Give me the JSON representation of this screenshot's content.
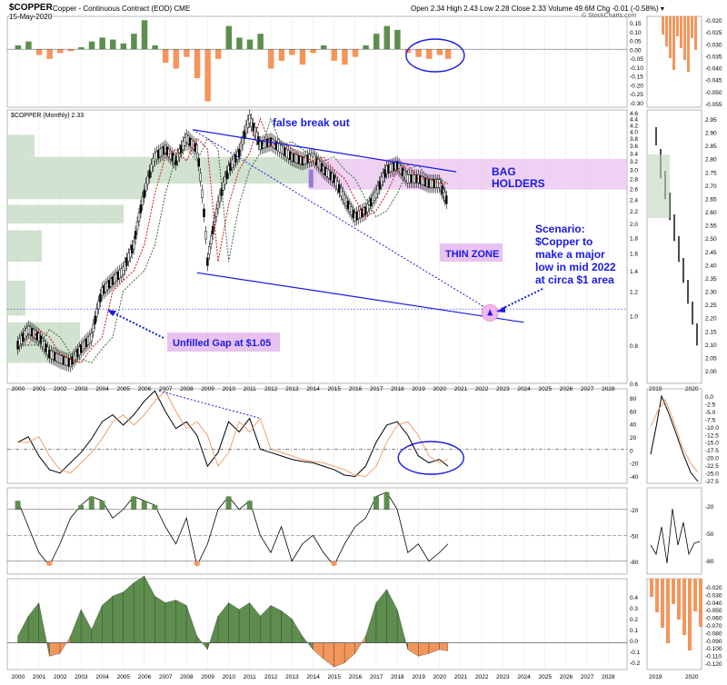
{
  "header": {
    "symbol": "$COPPER",
    "description": "Copper - Continuous Contract (EOD) CME",
    "date": "15-May-2020",
    "quote": "Open 2.34  High 2.43  Low 2.28  Close 2.33  Volume 49.6M  Chg -0.01 (-0.58%) ▾",
    "credit": "© StockCharts.com"
  },
  "colors": {
    "green": "#5e8e4e",
    "orange": "#f4965b",
    "blue": "#1a1ae6",
    "pink": "#e9c3ef",
    "vbp": "#bfd6bc",
    "ma_red": "#d01010",
    "ma_green": "#3a6a3a"
  },
  "chart_data": [
    {
      "type": "bar",
      "panel": "histogram-top",
      "x": [
        2000,
        2000.5,
        2001,
        2001.5,
        2002,
        2002.5,
        2003,
        2003.5,
        2004,
        2004.5,
        2005,
        2005.5,
        2006,
        2006.5,
        2007,
        2007.5,
        2008,
        2008.5,
        2009,
        2009.5,
        2010,
        2010.5,
        2011,
        2011.5,
        2012,
        2012.5,
        2013,
        2013.5,
        2014,
        2014.5,
        2015,
        2015.5,
        2016,
        2016.5,
        2017,
        2017.5,
        2018,
        2018.5,
        2019,
        2019.5,
        2020,
        2020.4
      ],
      "values": [
        0.02,
        0.04,
        -0.03,
        -0.05,
        -0.02,
        -0.01,
        0.01,
        0.04,
        0.06,
        0.05,
        0.03,
        0.08,
        0.15,
        0.02,
        -0.07,
        -0.1,
        -0.04,
        -0.15,
        -0.27,
        -0.05,
        0.12,
        0.06,
        0.05,
        0.08,
        -0.1,
        -0.06,
        -0.03,
        -0.08,
        -0.02,
        0.02,
        -0.06,
        -0.08,
        -0.04,
        0.02,
        0.08,
        0.12,
        0.1,
        -0.02,
        -0.04,
        -0.05,
        -0.03,
        -0.05
      ],
      "ylim": [
        -0.3,
        0.17
      ]
    },
    {
      "type": "line",
      "panel": "price",
      "title": "$COPPER (Monthly) 2.33",
      "log_scale": true,
      "x": [
        2000,
        2000.5,
        2001,
        2001.5,
        2002,
        2002.5,
        2003,
        2003.5,
        2004,
        2004.5,
        2005,
        2005.5,
        2006,
        2006.5,
        2007,
        2007.5,
        2008,
        2008.5,
        2009,
        2009.5,
        2010,
        2010.5,
        2011,
        2011.5,
        2012,
        2012.5,
        2013,
        2013.5,
        2014,
        2014.5,
        2015,
        2015.5,
        2016,
        2016.5,
        2017,
        2017.5,
        2018,
        2018.5,
        2019,
        2019.5,
        2020,
        2020.4
      ],
      "series": [
        {
          "values": [
            0.8,
            0.9,
            0.85,
            0.75,
            0.72,
            0.7,
            0.78,
            0.85,
            1.2,
            1.3,
            1.4,
            1.7,
            2.5,
            3.3,
            3.5,
            3.2,
            3.8,
            3.5,
            1.5,
            2.3,
            3.0,
            3.4,
            4.4,
            3.6,
            3.7,
            3.5,
            3.3,
            3.2,
            3.3,
            3.0,
            2.8,
            2.4,
            2.1,
            2.2,
            2.5,
            3.0,
            3.1,
            2.8,
            2.8,
            2.7,
            2.7,
            2.33
          ]
        }
      ],
      "ylim": [
        0.6,
        4.7
      ],
      "x_ticks": [
        "2000",
        "2001",
        "2002",
        "2003",
        "2004",
        "2005",
        "2006",
        "2007",
        "2008",
        "2009",
        "2010",
        "2011",
        "2012",
        "2013",
        "2014",
        "2015",
        "2016",
        "2017",
        "2018",
        "2019",
        "2020",
        "2021",
        "2022",
        "2023",
        "2024",
        "2025",
        "2026",
        "2027",
        "2028"
      ],
      "y_ticks": [
        0.6,
        0.8,
        1.0,
        1.2,
        1.4,
        1.6,
        1.8,
        2.0,
        2.2,
        2.4,
        2.6,
        2.8,
        3.0,
        3.2,
        3.4,
        3.6,
        3.8,
        4.0,
        4.2,
        4.4,
        4.6
      ]
    },
    {
      "type": "line",
      "panel": "momentum",
      "x": [
        2000,
        2000.5,
        2001,
        2001.5,
        2002,
        2002.5,
        2003,
        2003.5,
        2004,
        2004.5,
        2005,
        2005.5,
        2006,
        2006.5,
        2007,
        2007.5,
        2008,
        2008.5,
        2009,
        2009.5,
        2010,
        2010.5,
        2011,
        2011.5,
        2012,
        2012.5,
        2013,
        2013.5,
        2014,
        2014.5,
        2015,
        2015.5,
        2016,
        2016.5,
        2017,
        2017.5,
        2018,
        2018.5,
        2019,
        2019.5,
        2020,
        2020.4
      ],
      "series": [
        {
          "values": [
            10,
            18,
            -10,
            -30,
            -35,
            -20,
            -5,
            15,
            40,
            50,
            35,
            50,
            70,
            85,
            55,
            30,
            40,
            20,
            -25,
            -5,
            40,
            25,
            45,
            0,
            -5,
            -10,
            -15,
            -18,
            -20,
            -25,
            -30,
            -38,
            -40,
            -25,
            10,
            35,
            40,
            20,
            -10,
            -20,
            -15,
            -25
          ]
        }
      ],
      "ylim": [
        -50,
        88
      ]
    },
    {
      "type": "line",
      "panel": "oscillator",
      "x": [
        2000,
        2000.5,
        2001,
        2001.5,
        2002,
        2002.5,
        2003,
        2003.5,
        2004,
        2004.5,
        2005,
        2005.5,
        2006,
        2006.5,
        2007,
        2007.5,
        2008,
        2008.5,
        2009,
        2009.5,
        2010,
        2010.5,
        2011,
        2011.5,
        2012,
        2012.5,
        2013,
        2013.5,
        2014,
        2014.5,
        2015,
        2015.5,
        2016,
        2016.5,
        2017,
        2017.5,
        2018,
        2018.5,
        2019,
        2019.5,
        2020,
        2020.4
      ],
      "series": [
        {
          "values": [
            -10,
            -40,
            -70,
            -85,
            -60,
            -30,
            -15,
            -5,
            -10,
            -30,
            -20,
            -5,
            -10,
            -15,
            -40,
            -60,
            -30,
            -85,
            -60,
            -20,
            -5,
            -20,
            -10,
            -50,
            -70,
            -40,
            -80,
            -60,
            -50,
            -70,
            -85,
            -60,
            -40,
            -30,
            -5,
            0,
            -20,
            -70,
            -60,
            -80,
            -70,
            -60
          ]
        }
      ],
      "ylim": [
        -95,
        5
      ]
    },
    {
      "type": "area",
      "panel": "histogram-bottom",
      "x": [
        2000,
        2000.5,
        2001,
        2001.5,
        2002,
        2002.5,
        2003,
        2003.5,
        2004,
        2004.5,
        2005,
        2005.5,
        2006,
        2006.5,
        2007,
        2007.5,
        2008,
        2008.5,
        2009,
        2009.5,
        2010,
        2010.5,
        2011,
        2011.5,
        2012,
        2012.5,
        2013,
        2013.5,
        2014,
        2014.5,
        2015,
        2015.5,
        2016,
        2016.5,
        2017,
        2017.5,
        2018,
        2018.5,
        2019,
        2019.5,
        2020,
        2020.4
      ],
      "values": [
        0.05,
        0.2,
        0.3,
        -0.1,
        -0.08,
        0.05,
        0.25,
        0.1,
        0.28,
        0.35,
        0.38,
        0.45,
        0.5,
        0.35,
        0.3,
        0.32,
        0.28,
        0.05,
        -0.05,
        0.2,
        0.3,
        0.25,
        0.3,
        0.2,
        0.28,
        0.24,
        0.18,
        0.05,
        -0.05,
        -0.12,
        -0.18,
        -0.15,
        -0.08,
        0.05,
        0.3,
        0.4,
        0.25,
        -0.05,
        -0.1,
        -0.08,
        -0.05,
        -0.06
      ],
      "ylim": [
        -0.2,
        0.48
      ]
    }
  ],
  "top_axis": [
    "0.15",
    "0.10",
    "0.05",
    "0.00",
    "-0.05",
    "-0.10",
    "-0.15",
    "-0.20",
    "-0.25",
    "-0.30"
  ],
  "mom_axis": [
    "80",
    "60",
    "40",
    "20",
    "0",
    "-20",
    "-40"
  ],
  "osc_axis": [
    "-20",
    "-50",
    "-80"
  ],
  "bot_axis": [
    "0.4",
    "0.3",
    "0.2",
    "0.1",
    "0.0",
    "-0.1",
    "-0.2"
  ],
  "annotations": {
    "false_break": "false break out",
    "bag": "BAG",
    "holders": "HOLDERS",
    "thin_zone": "THIN ZONE",
    "unfilled_gap": "Unfilled Gap at $1.05",
    "scenario": [
      "Scenario:",
      "$Copper to",
      "make a major",
      "low in mid 2022",
      "at circa $1 area"
    ]
  },
  "side": {
    "top_axis": [
      "-0.020",
      "-0.025",
      "-0.030",
      "-0.035",
      "-0.040",
      "-0.045",
      "-0.050",
      "-0.055"
    ],
    "price_axis": [
      "2.95",
      "2.90",
      "2.85",
      "2.80",
      "2.75",
      "2.70",
      "2.65",
      "2.60",
      "2.55",
      "2.50",
      "2.45",
      "2.40",
      "2.35",
      "2.30",
      "2.25",
      "2.20",
      "2.15",
      "2.10",
      "2.05",
      "2.00"
    ],
    "mom_axis": [
      "0.0",
      "-2.5",
      "-5.0",
      "-7.5",
      "-10.0",
      "-12.5",
      "-15.0",
      "-17.5",
      "-20.0",
      "-22.5",
      "-25.0",
      "-27.5"
    ],
    "osc_axis": [
      "-20",
      "-50",
      "-80"
    ],
    "bot_axis": [
      "-0.020",
      "-0.030",
      "-0.040",
      "-0.050",
      "-0.060",
      "-0.070",
      "-0.080",
      "-0.090",
      "-0.100",
      "-0.110",
      "-0.120"
    ],
    "x_ticks": [
      "2019",
      "2020"
    ]
  }
}
